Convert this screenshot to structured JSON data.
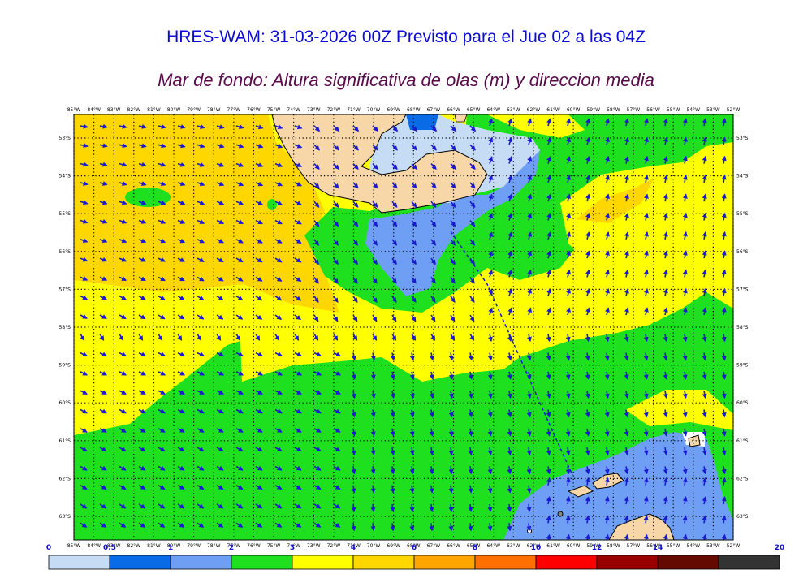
{
  "title": "HRES-WAM: 31-03-2026 00Z Previsto para el Jue 02 a las 04Z",
  "subtitle": "Mar de fondo: Altura significativa de olas (m) y direccion media",
  "lon_labels": [
    "85°W",
    "84°W",
    "83°W",
    "82°W",
    "81°W",
    "80°W",
    "79°W",
    "78°W",
    "77°W",
    "76°W",
    "75°W",
    "74°W",
    "73°W",
    "72°W",
    "71°W",
    "70°W",
    "69°W",
    "68°W",
    "67°W",
    "66°W",
    "65°W",
    "64°W",
    "63°W",
    "62°W",
    "61°W",
    "60°W",
    "59°W",
    "58°W",
    "57°W",
    "56°W",
    "55°W",
    "54°W",
    "53°W",
    "52°W"
  ],
  "lat_labels": [
    "53°S",
    "54°S",
    "55°S",
    "56°S",
    "57°S",
    "58°S",
    "59°S",
    "60°S",
    "61°S",
    "62°S",
    "63°S"
  ],
  "colorbar": {
    "ticks": [
      "0",
      "0.5",
      "1",
      "2",
      "3",
      "4",
      "6",
      "8",
      "10",
      "12",
      "14",
      "20"
    ],
    "colors": [
      "#c6dcf5",
      "#0a6be6",
      "#6e9ff5",
      "#1fe01f",
      "#ffff00",
      "#ffd700",
      "#ffa500",
      "#ff7000",
      "#ff0000",
      "#990000",
      "#640a00",
      "#333333"
    ]
  },
  "legend_colors": {
    "light_blue": "#c6dcf5",
    "mid_blue": "#6e9ff5",
    "deep_blue": "#0a6be6",
    "green": "#1fe01f",
    "yellow": "#ffff00",
    "gold": "#ffd700",
    "land": "#f7d7a8",
    "arrow": "#1a1ad0"
  }
}
